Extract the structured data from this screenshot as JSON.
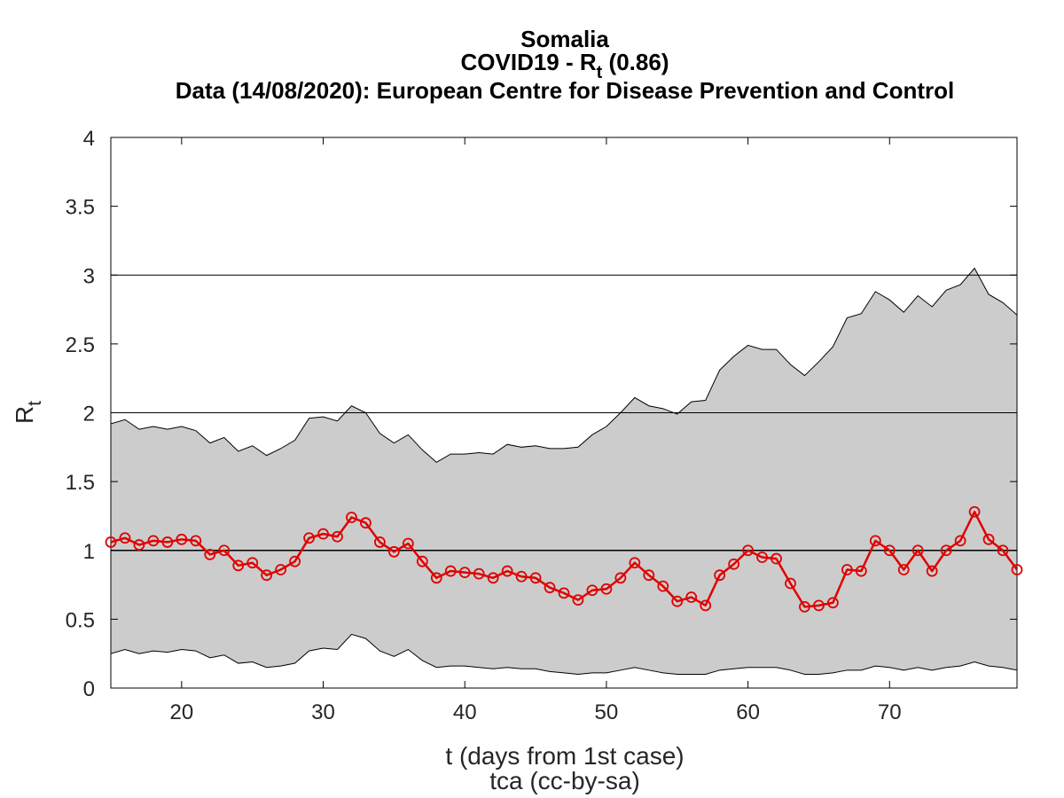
{
  "chart_data": {
    "type": "line",
    "title_country": "Somalia",
    "title_metric_prefix": "COVID19 - R",
    "title_metric_sub": "t",
    "title_metric_suffix": " (0.86)",
    "title_source": "Data (14/08/2020): European Centre for Disease Prevention and Control",
    "xlabel": "t (days from 1st case)",
    "xlabel2": "tca (cc-by-sa)",
    "ylabel_main": "R",
    "ylabel_sub": "t",
    "xlim": [
      15,
      79
    ],
    "ylim": [
      0,
      4
    ],
    "xticks": [
      20,
      30,
      40,
      50,
      60,
      70
    ],
    "yticks": [
      0,
      0.5,
      1,
      1.5,
      2,
      2.5,
      3,
      3.5,
      4
    ],
    "ytick_labels": [
      "0",
      "0.5",
      "1",
      "1.5",
      "2",
      "2.5",
      "3",
      "3.5",
      "4"
    ],
    "hlines": [
      1,
      2,
      3
    ],
    "colors": {
      "series": "#e00000",
      "band": "#cccccc"
    },
    "x": [
      15,
      16,
      17,
      18,
      19,
      20,
      21,
      22,
      23,
      24,
      25,
      26,
      27,
      28,
      29,
      30,
      31,
      32,
      33,
      34,
      35,
      36,
      37,
      38,
      39,
      40,
      41,
      42,
      43,
      44,
      45,
      46,
      47,
      48,
      49,
      50,
      51,
      52,
      53,
      54,
      55,
      56,
      57,
      58,
      59,
      60,
      61,
      62,
      63,
      64,
      65,
      66,
      67,
      68,
      69,
      70,
      71,
      72,
      73,
      74,
      75,
      76,
      77,
      78,
      79
    ],
    "series": [
      {
        "values": [
          1.06,
          1.09,
          1.04,
          1.07,
          1.06,
          1.08,
          1.07,
          0.97,
          1.0,
          0.89,
          0.91,
          0.82,
          0.86,
          0.92,
          1.09,
          1.12,
          1.1,
          1.24,
          1.2,
          1.06,
          0.99,
          1.05,
          0.92,
          0.8,
          0.85,
          0.84,
          0.83,
          0.8,
          0.85,
          0.81,
          0.8,
          0.73,
          0.69,
          0.64,
          0.71,
          0.72,
          0.8,
          0.91,
          0.82,
          0.74,
          0.63,
          0.66,
          0.6,
          0.82,
          0.9,
          1.0,
          0.95,
          0.94,
          0.76,
          0.59,
          0.6,
          0.62,
          0.86,
          0.85,
          1.07,
          1.0,
          0.86,
          1.0,
          0.85,
          1.0,
          1.07,
          1.28,
          1.08,
          1.0,
          0.86
        ]
      }
    ],
    "band_upper": [
      1.92,
      1.95,
      1.88,
      1.9,
      1.88,
      1.9,
      1.87,
      1.78,
      1.82,
      1.72,
      1.76,
      1.69,
      1.74,
      1.8,
      1.96,
      1.97,
      1.94,
      2.05,
      2.0,
      1.85,
      1.78,
      1.84,
      1.73,
      1.64,
      1.7,
      1.7,
      1.71,
      1.7,
      1.77,
      1.75,
      1.76,
      1.74,
      1.74,
      1.75,
      1.84,
      1.9,
      2.0,
      2.11,
      2.05,
      2.03,
      1.99,
      2.08,
      2.09,
      2.31,
      2.41,
      2.49,
      2.46,
      2.46,
      2.35,
      2.27,
      2.37,
      2.48,
      2.69,
      2.72,
      2.88,
      2.82,
      2.73,
      2.85,
      2.77,
      2.89,
      2.93,
      3.05,
      2.86,
      2.8,
      2.71
    ],
    "band_lower": [
      0.25,
      0.28,
      0.25,
      0.27,
      0.26,
      0.28,
      0.27,
      0.22,
      0.24,
      0.18,
      0.19,
      0.15,
      0.16,
      0.18,
      0.27,
      0.29,
      0.28,
      0.39,
      0.36,
      0.27,
      0.23,
      0.28,
      0.2,
      0.15,
      0.16,
      0.16,
      0.15,
      0.14,
      0.15,
      0.14,
      0.14,
      0.12,
      0.11,
      0.1,
      0.11,
      0.11,
      0.13,
      0.15,
      0.13,
      0.11,
      0.1,
      0.1,
      0.1,
      0.13,
      0.14,
      0.15,
      0.15,
      0.15,
      0.13,
      0.1,
      0.1,
      0.11,
      0.13,
      0.13,
      0.16,
      0.15,
      0.13,
      0.15,
      0.13,
      0.15,
      0.16,
      0.19,
      0.16,
      0.15,
      0.13
    ]
  }
}
